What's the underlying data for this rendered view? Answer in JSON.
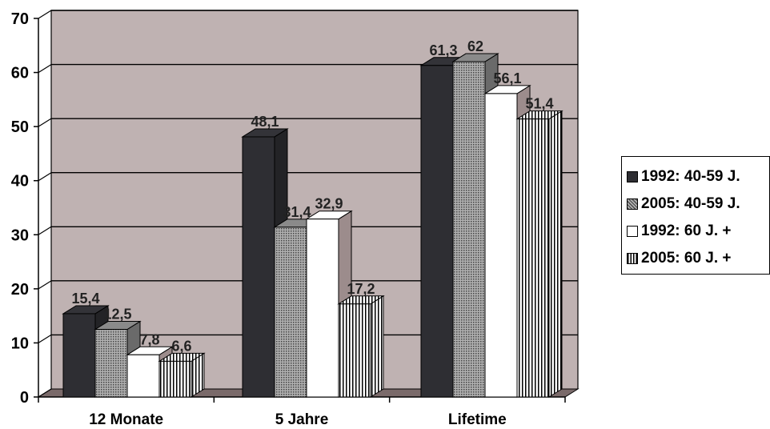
{
  "chart_data": {
    "type": "bar",
    "title": "",
    "xlabel": "",
    "ylabel": "",
    "ylim": [
      0,
      70
    ],
    "yticks": [
      "0",
      "10",
      "20",
      "30",
      "40",
      "50",
      "60",
      "70"
    ],
    "grid": true,
    "legend_position": "right",
    "style": "3d-clustered",
    "categories": [
      "12 Monate",
      "5 Jahre",
      "Lifetime"
    ],
    "series": [
      {
        "name": "1992: 40-59 J.",
        "values": [
          15.4,
          48.1,
          61.3
        ],
        "labels": [
          "15,4",
          "48,1",
          "61,3"
        ],
        "fill": "#2e2e33",
        "pattern": "solid"
      },
      {
        "name": "2005: 40-59 J.",
        "values": [
          12.5,
          31.4,
          62
        ],
        "labels": [
          "12,5",
          "31,4",
          "62"
        ],
        "fill": "#9a9a9a",
        "pattern": "dotted"
      },
      {
        "name": "1992: 60 J. +",
        "values": [
          7.8,
          32.9,
          56.1
        ],
        "labels": [
          "7,8",
          "32,9",
          "56,1"
        ],
        "fill": "#ffffff",
        "pattern": "solid"
      },
      {
        "name": "2005: 60 J. +",
        "values": [
          6.6,
          17.2,
          51.4
        ],
        "labels": [
          "6,6",
          "17,2",
          "51,4"
        ],
        "fill": "#ffffff",
        "pattern": "vertical-stripes"
      }
    ],
    "colors": {
      "wall": "#bfb2b2",
      "floor": "#7a6a6a",
      "grid": "#000000"
    }
  }
}
